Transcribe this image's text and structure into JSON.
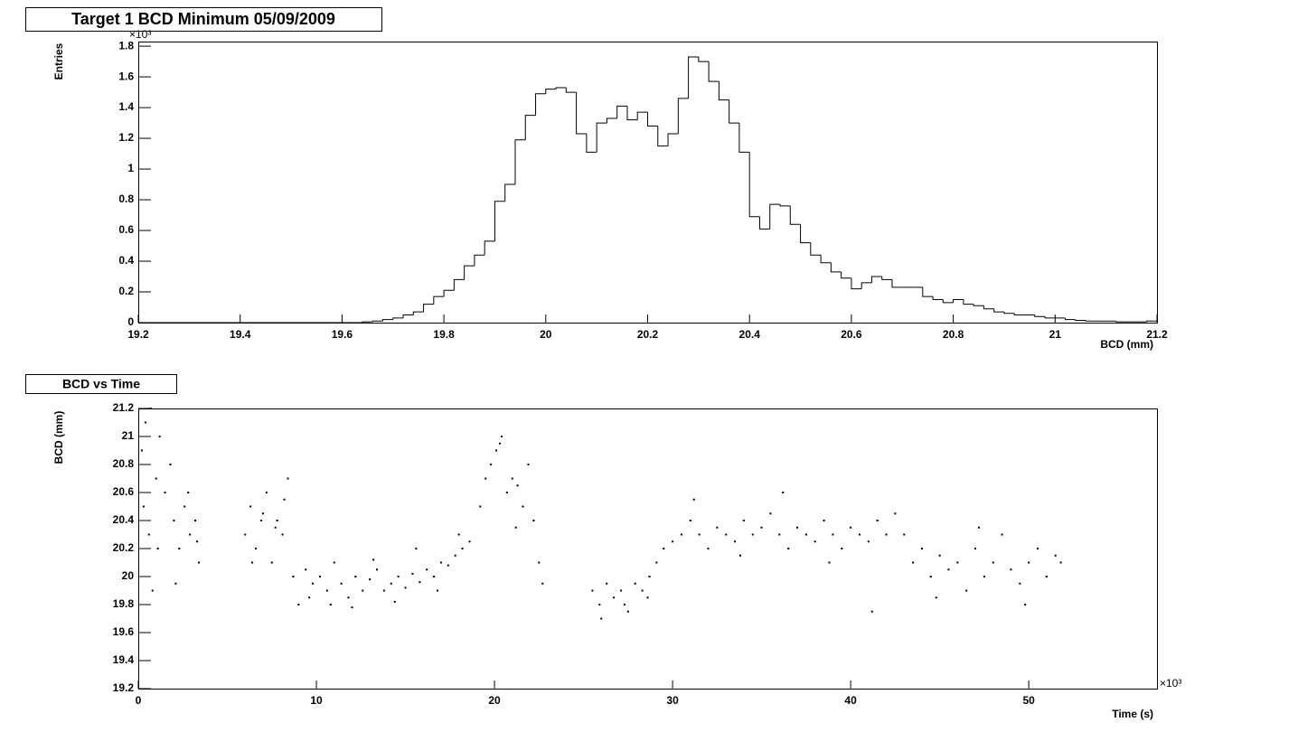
{
  "chart_data": [
    {
      "type": "histogram",
      "title": "Target 1 BCD Minimum 05/09/2009",
      "x_label": "BCD (mm)",
      "y_label": "Entries",
      "y_multiplier": "×10³",
      "bins": [
        19.2,
        19.22,
        19.24,
        19.26,
        19.28,
        19.3,
        19.32,
        19.34,
        19.36,
        19.38,
        19.4,
        19.42,
        19.44,
        19.46,
        19.48,
        19.5,
        19.52,
        19.54,
        19.56,
        19.58,
        19.6,
        19.62,
        19.64,
        19.66,
        19.68,
        19.7,
        19.72,
        19.74,
        19.76,
        19.78,
        19.8,
        19.82,
        19.84,
        19.86,
        19.88,
        19.9,
        19.92,
        19.94,
        19.96,
        19.98,
        20,
        20.02,
        20.04,
        20.06,
        20.08,
        20.1,
        20.12,
        20.14,
        20.16,
        20.18,
        20.2,
        20.22,
        20.24,
        20.26,
        20.28,
        20.3,
        20.32,
        20.34,
        20.36,
        20.38,
        20.4,
        20.42,
        20.44,
        20.46,
        20.48,
        20.5,
        20.52,
        20.54,
        20.56,
        20.58,
        20.6,
        20.62,
        20.64,
        20.66,
        20.68,
        20.7,
        20.72,
        20.74,
        20.76,
        20.78,
        20.8,
        20.82,
        20.84,
        20.86,
        20.88,
        20.9,
        20.92,
        20.94,
        20.96,
        20.98,
        21,
        21.02,
        21.04,
        21.06,
        21.08,
        21.1,
        21.12,
        21.14,
        21.16,
        21.18,
        21.2
      ],
      "values": [
        0,
        0,
        0,
        0,
        0,
        0,
        0,
        0,
        0,
        0,
        0,
        0,
        0,
        0,
        0,
        0,
        0,
        0,
        0,
        0,
        0,
        0,
        0.005,
        0.01,
        0.02,
        0.03,
        0.05,
        0.07,
        0.12,
        0.17,
        0.21,
        0.28,
        0.37,
        0.44,
        0.53,
        0.79,
        0.9,
        1.19,
        1.35,
        1.49,
        1.52,
        1.53,
        1.5,
        1.23,
        1.11,
        1.3,
        1.33,
        1.41,
        1.32,
        1.37,
        1.28,
        1.15,
        1.23,
        1.46,
        1.73,
        1.7,
        1.57,
        1.45,
        1.3,
        1.11,
        0.69,
        0.61,
        0.77,
        0.76,
        0.64,
        0.52,
        0.44,
        0.39,
        0.33,
        0.29,
        0.22,
        0.26,
        0.3,
        0.28,
        0.23,
        0.23,
        0.23,
        0.17,
        0.15,
        0.13,
        0.15,
        0.12,
        0.11,
        0.09,
        0.07,
        0.06,
        0.05,
        0.05,
        0.04,
        0.03,
        0.03,
        0.02,
        0.015,
        0.01,
        0.01,
        0.01,
        0.005,
        0.005,
        0.005,
        0.01
      ],
      "color": "#000000",
      "xlim": [
        19.2,
        21.2
      ],
      "xticks": [
        19.2,
        19.4,
        19.6,
        19.8,
        20,
        20.2,
        20.4,
        20.6,
        20.8,
        21,
        21.2
      ],
      "ylim": [
        0,
        1.83
      ],
      "yticks": [
        0,
        0.2,
        0.4,
        0.6,
        0.8,
        1,
        1.2,
        1.4,
        1.6,
        1.8
      ]
    },
    {
      "type": "scatter",
      "title": "BCD vs Time",
      "x_label": "Time (s)",
      "y_label": "BCD (mm)",
      "x_multiplier": "×10³",
      "color": "#000000",
      "x": [
        0.2,
        0.4,
        0.6,
        0.8,
        1.0,
        1.2,
        0.3,
        0.7,
        1.1,
        1.5,
        1.8,
        2.0,
        2.3,
        2.6,
        2.9,
        3.2,
        3.4,
        2.1,
        2.8,
        3.3,
        6.0,
        6.3,
        6.6,
        6.9,
        7.2,
        7.5,
        7.8,
        8.1,
        8.4,
        8.7,
        6.4,
        7.0,
        7.7,
        8.2,
        9.0,
        9.4,
        9.8,
        10.2,
        10.6,
        11.0,
        11.4,
        11.8,
        12.2,
        12.6,
        13.0,
        13.4,
        13.8,
        14.2,
        14.6,
        15.0,
        15.4,
        15.8,
        16.2,
        16.6,
        17.0,
        17.4,
        17.8,
        18.2,
        18.6,
        9.6,
        10.8,
        12.0,
        13.2,
        14.4,
        15.6,
        16.8,
        18.0,
        19.2,
        19.5,
        19.8,
        20.1,
        20.4,
        20.7,
        21.0,
        21.3,
        21.6,
        21.9,
        22.2,
        22.5,
        22.7,
        20.3,
        21.2,
        25.5,
        25.9,
        26.3,
        26.7,
        27.1,
        27.5,
        27.9,
        28.3,
        28.7,
        29.1,
        29.5,
        26.0,
        27.3,
        28.6,
        30.0,
        30.5,
        31.0,
        31.5,
        32.0,
        32.5,
        33.0,
        33.5,
        34.0,
        34.5,
        35.0,
        35.5,
        36.0,
        36.5,
        37.0,
        37.5,
        38.0,
        38.5,
        39.0,
        39.5,
        40.0,
        40.5,
        41.0,
        41.5,
        42.0,
        42.5,
        43.0,
        31.2,
        33.8,
        36.2,
        38.8,
        41.2,
        43.5,
        44.0,
        44.5,
        45.0,
        45.5,
        46.0,
        46.5,
        47.0,
        47.5,
        48.0,
        48.5,
        49.0,
        49.5,
        50.0,
        50.5,
        51.0,
        51.5,
        51.8,
        44.8,
        47.2,
        49.8
      ],
      "y": [
        20.9,
        21.1,
        20.3,
        19.9,
        20.7,
        21.0,
        20.5,
        21.2,
        20.2,
        20.6,
        20.8,
        20.4,
        20.2,
        20.5,
        20.3,
        20.4,
        20.1,
        19.95,
        20.6,
        20.25,
        20.3,
        20.5,
        20.2,
        20.4,
        20.6,
        20.1,
        20.4,
        20.3,
        20.7,
        20.0,
        20.1,
        20.45,
        20.35,
        20.55,
        19.8,
        20.05,
        19.95,
        20.0,
        19.9,
        20.1,
        19.95,
        19.85,
        20.0,
        19.9,
        19.98,
        20.05,
        19.9,
        19.95,
        20.0,
        19.92,
        20.02,
        19.96,
        20.05,
        20.0,
        20.1,
        20.08,
        20.15,
        20.2,
        20.25,
        19.85,
        19.8,
        19.78,
        20.12,
        19.82,
        20.2,
        19.9,
        20.3,
        20.5,
        20.7,
        20.8,
        20.9,
        21.0,
        20.6,
        20.7,
        20.65,
        20.5,
        20.8,
        20.4,
        20.1,
        19.95,
        20.95,
        20.35,
        19.9,
        19.8,
        19.95,
        19.85,
        19.9,
        19.75,
        19.95,
        19.9,
        20.0,
        20.1,
        20.2,
        19.7,
        19.8,
        19.85,
        20.25,
        20.3,
        20.4,
        20.3,
        20.2,
        20.35,
        20.3,
        20.25,
        20.4,
        20.3,
        20.35,
        20.45,
        20.3,
        20.2,
        20.35,
        20.3,
        20.25,
        20.4,
        20.3,
        20.2,
        20.35,
        20.3,
        20.25,
        20.4,
        20.3,
        20.45,
        20.3,
        20.55,
        20.15,
        20.6,
        20.1,
        19.75,
        20.1,
        20.2,
        20.0,
        20.15,
        20.05,
        20.1,
        19.9,
        20.2,
        20.0,
        20.1,
        20.3,
        20.05,
        19.95,
        20.1,
        20.2,
        20.0,
        20.15,
        20.1,
        19.85,
        20.35,
        19.8
      ],
      "xlim": [
        0,
        57.2
      ],
      "xticks": [
        0,
        10,
        20,
        30,
        40,
        50
      ],
      "ylim": [
        19.2,
        21.2
      ],
      "yticks": [
        19.2,
        19.4,
        19.6,
        19.8,
        20,
        20.2,
        20.4,
        20.6,
        20.8,
        21,
        21.2
      ]
    }
  ]
}
